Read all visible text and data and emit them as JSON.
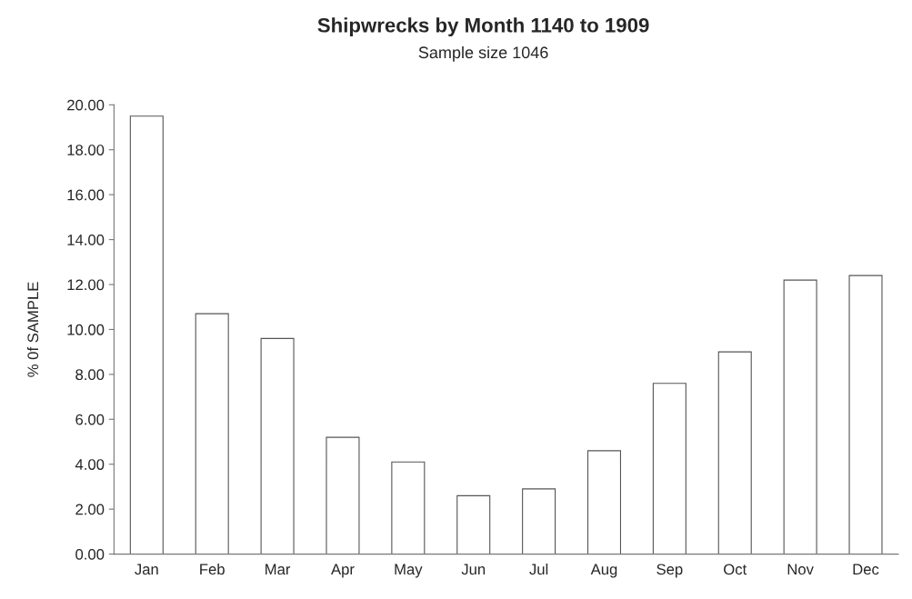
{
  "chart_data": {
    "type": "bar",
    "title": "Shipwrecks by Month 1140 to 1909",
    "subtitle": "Sample size 1046",
    "ylabel": "% 0f SAMPLE",
    "categories": [
      "Jan",
      "Feb",
      "Mar",
      "Apr",
      "May",
      "Jun",
      "Jul",
      "Aug",
      "Sep",
      "Oct",
      "Nov",
      "Dec"
    ],
    "values": [
      19.5,
      10.7,
      9.6,
      5.2,
      4.1,
      2.6,
      2.9,
      4.6,
      7.6,
      9.0,
      12.2,
      12.4
    ],
    "color": "#ffffff",
    "ylim": [
      0,
      20
    ],
    "yticks": [
      {
        "value": 0,
        "label": "0.00"
      },
      {
        "value": 2,
        "label": "2.00"
      },
      {
        "value": 4,
        "label": "4.00"
      },
      {
        "value": 6,
        "label": "6.00"
      },
      {
        "value": 8,
        "label": "8.00"
      },
      {
        "value": 10,
        "label": "10.00"
      },
      {
        "value": 12,
        "label": "12.00"
      },
      {
        "value": 14,
        "label": "14.00"
      },
      {
        "value": 16,
        "label": "16.00"
      },
      {
        "value": 18,
        "label": "18.00"
      },
      {
        "value": 20,
        "label": "20.00"
      }
    ],
    "grid": false
  }
}
